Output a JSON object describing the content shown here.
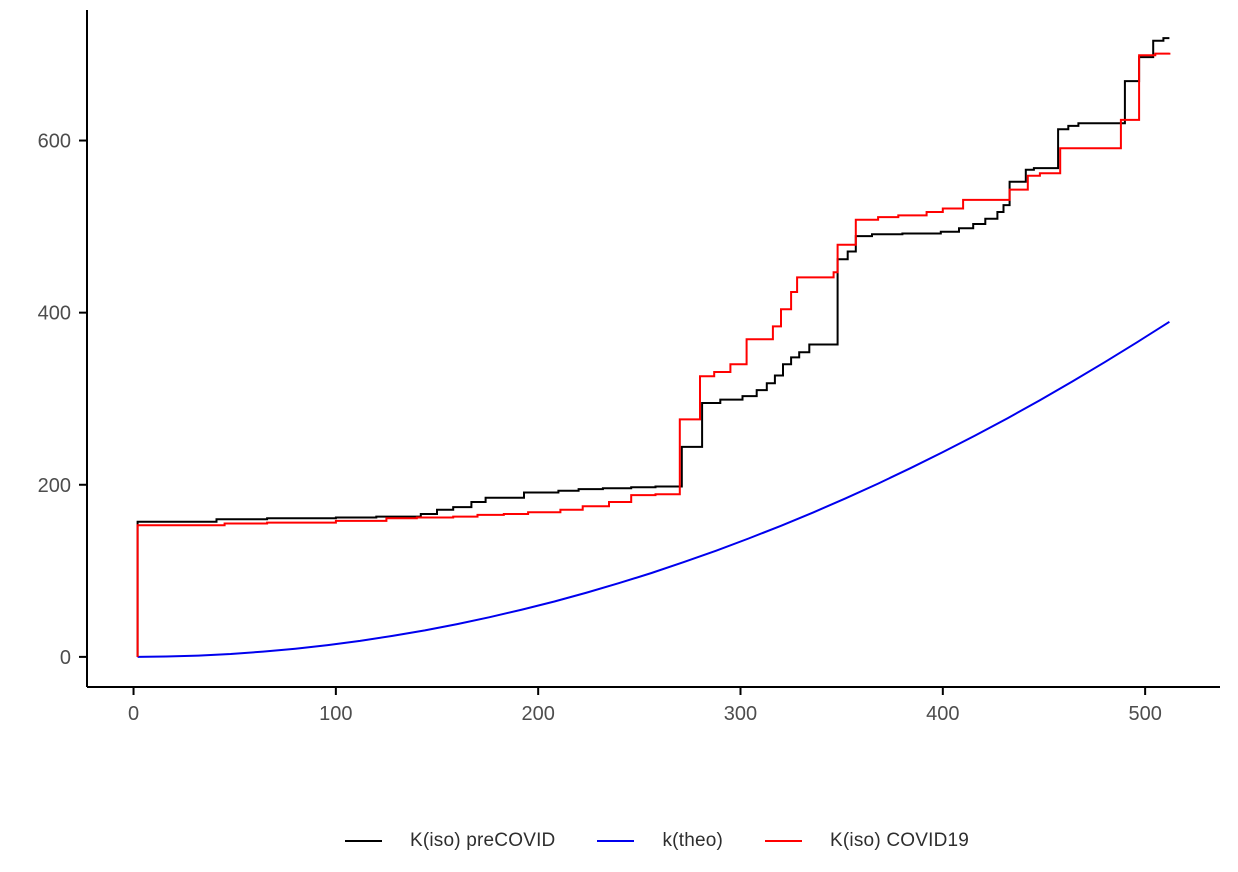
{
  "chart_data": {
    "type": "line",
    "title": "",
    "xlabel": "",
    "ylabel": "",
    "grid": false,
    "legend_position": "bottom-center",
    "xlim": [
      -23,
      537
    ],
    "ylim": [
      -35,
      754
    ],
    "x_ticks": [
      0,
      100,
      200,
      300,
      400,
      500
    ],
    "y_ticks": [
      0,
      200,
      400,
      600
    ],
    "axis_color": "#000000",
    "tick_label_color": "#4d4d4d",
    "series": [
      {
        "name": "K(iso) preCOVID",
        "color": "#000000",
        "style": "step",
        "points": [
          [
            2,
            0
          ],
          [
            2,
            157
          ],
          [
            41,
            160
          ],
          [
            66,
            161
          ],
          [
            100,
            162
          ],
          [
            120,
            163
          ],
          [
            142,
            166
          ],
          [
            150,
            171
          ],
          [
            158,
            174
          ],
          [
            167,
            180
          ],
          [
            174,
            185
          ],
          [
            193,
            191
          ],
          [
            210,
            193
          ],
          [
            220,
            195
          ],
          [
            232,
            196
          ],
          [
            246,
            197
          ],
          [
            258,
            198
          ],
          [
            271,
            244
          ],
          [
            281,
            295
          ],
          [
            290,
            299
          ],
          [
            301,
            303
          ],
          [
            308,
            310
          ],
          [
            313,
            318
          ],
          [
            317,
            327
          ],
          [
            321,
            340
          ],
          [
            325,
            348
          ],
          [
            329,
            354
          ],
          [
            334,
            363
          ],
          [
            348,
            462
          ],
          [
            353,
            471
          ],
          [
            357,
            489
          ],
          [
            365,
            491
          ],
          [
            380,
            492
          ],
          [
            399,
            494
          ],
          [
            408,
            498
          ],
          [
            415,
            503
          ],
          [
            421,
            509
          ],
          [
            427,
            517
          ],
          [
            430,
            525
          ],
          [
            433,
            552
          ],
          [
            441,
            566
          ],
          [
            445,
            568
          ],
          [
            457,
            613
          ],
          [
            462,
            617
          ],
          [
            467,
            620
          ],
          [
            490,
            669
          ],
          [
            497,
            697
          ],
          [
            504,
            716
          ],
          [
            509,
            719
          ],
          [
            512,
            719
          ]
        ]
      },
      {
        "name": "k(theo)",
        "color": "#0000ee",
        "style": "line",
        "points": [
          [
            2,
            0
          ],
          [
            16,
            0.4
          ],
          [
            32,
            1.5
          ],
          [
            48,
            3.4
          ],
          [
            64,
            6.1
          ],
          [
            80,
            9.5
          ],
          [
            96,
            13.7
          ],
          [
            112,
            18.6
          ],
          [
            128,
            24.4
          ],
          [
            144,
            30.8
          ],
          [
            160,
            38.1
          ],
          [
            176,
            46.1
          ],
          [
            192,
            54.9
          ],
          [
            208,
            64.3
          ],
          [
            224,
            74.7
          ],
          [
            240,
            85.7
          ],
          [
            256,
            97.5
          ],
          [
            272,
            110.1
          ],
          [
            288,
            123.4
          ],
          [
            304,
            137.6
          ],
          [
            320,
            152.3
          ],
          [
            336,
            167.9
          ],
          [
            352,
            184.3
          ],
          [
            368,
            201.4
          ],
          [
            384,
            219.3
          ],
          [
            400,
            237.9
          ],
          [
            416,
            257.3
          ],
          [
            432,
            277.4
          ],
          [
            448,
            298.3
          ],
          [
            464,
            320.0
          ],
          [
            480,
            342.4
          ],
          [
            496,
            365.5
          ],
          [
            512,
            389.4
          ]
        ]
      },
      {
        "name": "K(iso) COVID19",
        "color": "#ff0000",
        "style": "step",
        "points": [
          [
            2,
            0
          ],
          [
            2,
            153
          ],
          [
            45,
            155
          ],
          [
            66,
            156
          ],
          [
            100,
            158
          ],
          [
            125,
            161
          ],
          [
            140,
            162
          ],
          [
            158,
            163
          ],
          [
            170,
            165
          ],
          [
            183,
            166
          ],
          [
            195,
            168
          ],
          [
            211,
            171
          ],
          [
            222,
            175
          ],
          [
            235,
            180
          ],
          [
            246,
            188
          ],
          [
            258,
            189
          ],
          [
            270,
            276
          ],
          [
            280,
            326
          ],
          [
            287,
            331
          ],
          [
            295,
            340
          ],
          [
            303,
            369
          ],
          [
            316,
            384
          ],
          [
            320,
            404
          ],
          [
            325,
            424
          ],
          [
            328,
            441
          ],
          [
            346,
            447
          ],
          [
            348,
            479
          ],
          [
            357,
            508
          ],
          [
            368,
            511
          ],
          [
            378,
            513
          ],
          [
            392,
            517
          ],
          [
            400,
            521
          ],
          [
            410,
            531
          ],
          [
            433,
            543
          ],
          [
            442,
            559
          ],
          [
            448,
            562
          ],
          [
            458,
            591
          ],
          [
            488,
            624
          ],
          [
            497,
            699
          ],
          [
            505,
            701
          ],
          [
            512,
            702
          ]
        ]
      }
    ]
  },
  "legend": {
    "items": [
      {
        "label": "K(iso) preCOVID",
        "color": "#000000"
      },
      {
        "label": "k(theo)",
        "color": "#0000ee"
      },
      {
        "label": "K(iso) COVID19",
        "color": "#ff0000"
      }
    ]
  }
}
